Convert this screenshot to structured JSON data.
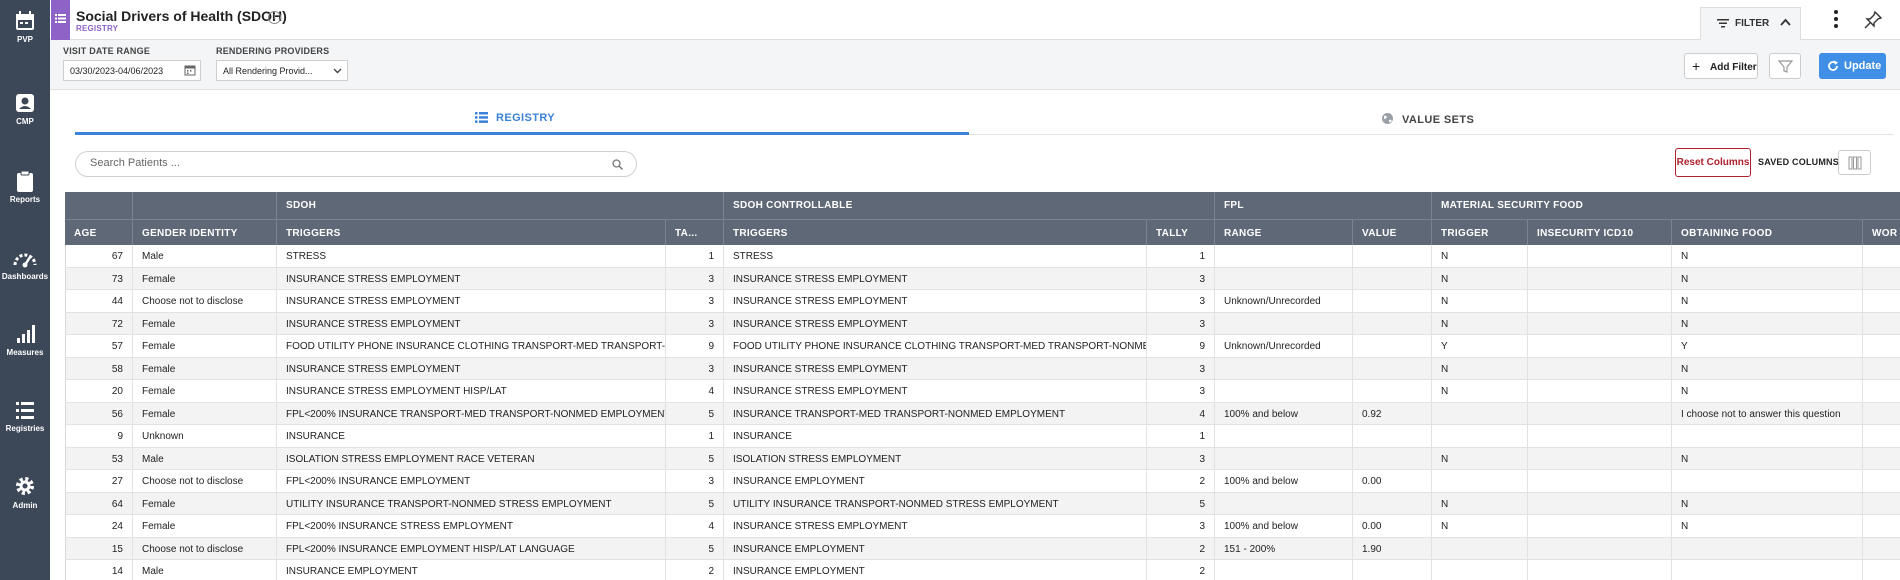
{
  "nav": {
    "items": [
      {
        "label": "PVP",
        "icon": "calendar-icon"
      },
      {
        "label": "CMP",
        "icon": "id-card-icon"
      },
      {
        "label": "Reports",
        "icon": "clipboard-icon"
      },
      {
        "label": "Dashboards",
        "icon": "speedometer-icon"
      },
      {
        "label": "Measures",
        "icon": "bar-chart-icon"
      },
      {
        "label": "Registries",
        "icon": "list-icon"
      },
      {
        "label": "Admin",
        "icon": "gear-icon"
      }
    ]
  },
  "header": {
    "title": "Social Drivers of Health (SDOH)",
    "subtitle": "REGISTRY",
    "info": "i",
    "filter_label": "FILTER"
  },
  "filters": {
    "visit_date_label": "VISIT DATE RANGE",
    "visit_date_value": "03/30/2023-04/06/2023",
    "providers_label": "RENDERING PROVIDERS",
    "providers_value": "All Rendering Provid...",
    "add_filter": "Add Filter",
    "update": "Update"
  },
  "tabs": {
    "registry": "REGISTRY",
    "value_sets": "VALUE SETS"
  },
  "search": {
    "placeholder": "Search Patients ..."
  },
  "controls": {
    "reset_columns": "Reset Columns",
    "saved_columns": "SAVED COLUMNS"
  },
  "table": {
    "groups": [
      "",
      "",
      "SDOH",
      "SDOH CONTROLLABLE",
      "FPL",
      "MATERIAL SECURITY FOOD"
    ],
    "columns": [
      "AGE",
      "GENDER IDENTITY",
      "TRIGGERS",
      "TA...",
      "TRIGGERS",
      "TALLY",
      "RANGE",
      "VALUE",
      "TRIGGER",
      "INSECURITY ICD10",
      "OBTAINING FOOD",
      "WOR"
    ],
    "rows": [
      [
        "67",
        "Male",
        "STRESS",
        "1",
        "STRESS",
        "1",
        "",
        "",
        "N",
        "",
        "N",
        ""
      ],
      [
        "73",
        "Female",
        "INSURANCE STRESS EMPLOYMENT",
        "3",
        "INSURANCE STRESS EMPLOYMENT",
        "3",
        "",
        "",
        "N",
        "",
        "N",
        ""
      ],
      [
        "44",
        "Choose not to disclose",
        "INSURANCE STRESS EMPLOYMENT",
        "3",
        "INSURANCE STRESS EMPLOYMENT",
        "3",
        "Unknown/Unrecorded",
        "",
        "N",
        "",
        "N",
        ""
      ],
      [
        "72",
        "Female",
        "INSURANCE STRESS EMPLOYMENT",
        "3",
        "INSURANCE STRESS EMPLOYMENT",
        "3",
        "",
        "",
        "N",
        "",
        "N",
        ""
      ],
      [
        "57",
        "Female",
        "FOOD UTILITY PHONE INSURANCE CLOTHING TRANSPORT-MED TRANSPORT-NO...",
        "9",
        "FOOD UTILITY PHONE INSURANCE CLOTHING TRANSPORT-MED TRANSPORT-NONMED S...",
        "9",
        "Unknown/Unrecorded",
        "",
        "Y",
        "",
        "Y",
        ""
      ],
      [
        "58",
        "Female",
        "INSURANCE STRESS EMPLOYMENT",
        "3",
        "INSURANCE STRESS EMPLOYMENT",
        "3",
        "",
        "",
        "N",
        "",
        "N",
        ""
      ],
      [
        "20",
        "Female",
        "INSURANCE STRESS EMPLOYMENT HISP/LAT",
        "4",
        "INSURANCE STRESS EMPLOYMENT",
        "3",
        "",
        "",
        "N",
        "",
        "N",
        ""
      ],
      [
        "56",
        "Female",
        "FPL<200% INSURANCE TRANSPORT-MED TRANSPORT-NONMED EMPLOYMENT",
        "5",
        "INSURANCE TRANSPORT-MED TRANSPORT-NONMED EMPLOYMENT",
        "4",
        "100% and below",
        "0.92",
        "",
        "",
        "I choose not to answer this question",
        ""
      ],
      [
        "9",
        "Unknown",
        "INSURANCE",
        "1",
        "INSURANCE",
        "1",
        "",
        "",
        "",
        "",
        "",
        ""
      ],
      [
        "53",
        "Male",
        "ISOLATION STRESS EMPLOYMENT RACE VETERAN",
        "5",
        "ISOLATION STRESS EMPLOYMENT",
        "3",
        "",
        "",
        "N",
        "",
        "N",
        ""
      ],
      [
        "27",
        "Choose not to disclose",
        "FPL<200% INSURANCE EMPLOYMENT",
        "3",
        "INSURANCE EMPLOYMENT",
        "2",
        "100% and below",
        "0.00",
        "",
        "",
        "",
        ""
      ],
      [
        "64",
        "Female",
        "UTILITY INSURANCE TRANSPORT-NONMED STRESS EMPLOYMENT",
        "5",
        "UTILITY INSURANCE TRANSPORT-NONMED STRESS EMPLOYMENT",
        "5",
        "",
        "",
        "N",
        "",
        "N",
        ""
      ],
      [
        "24",
        "Female",
        "FPL<200% INSURANCE STRESS EMPLOYMENT",
        "4",
        "INSURANCE STRESS EMPLOYMENT",
        "3",
        "100% and below",
        "0.00",
        "N",
        "",
        "N",
        ""
      ],
      [
        "15",
        "Choose not to disclose",
        "FPL<200% INSURANCE EMPLOYMENT HISP/LAT LANGUAGE",
        "5",
        "INSURANCE EMPLOYMENT",
        "2",
        "151 - 200%",
        "1.90",
        "",
        "",
        "",
        ""
      ],
      [
        "14",
        "Male",
        "INSURANCE EMPLOYMENT",
        "2",
        "INSURANCE EMPLOYMENT",
        "2",
        "",
        "",
        "",
        "",
        "",
        ""
      ]
    ]
  },
  "colors": {
    "nav_bg": "#3c4757",
    "accent_purple": "#8e63c7",
    "accent_blue": "#3a83d8",
    "header_grid": "#5f6877",
    "reset_red": "#b0202d"
  }
}
